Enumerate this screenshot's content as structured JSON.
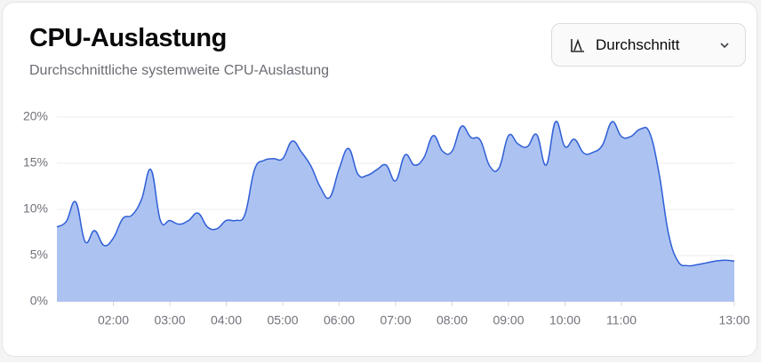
{
  "chart_data": {
    "type": "area",
    "title": "CPU-Auslastung",
    "subtitle": "Durchschnittliche systemweite CPU-Auslastung",
    "x": [
      60,
      70,
      80,
      90,
      100,
      110,
      120,
      130,
      140,
      150,
      160,
      170,
      180,
      190,
      200,
      210,
      220,
      230,
      240,
      250,
      260,
      270,
      280,
      290,
      300,
      310,
      320,
      330,
      340,
      350,
      360,
      370,
      380,
      390,
      400,
      410,
      420,
      430,
      440,
      450,
      460,
      470,
      480,
      490,
      500,
      510,
      520,
      530,
      540,
      550,
      560,
      570,
      580,
      590,
      600,
      610,
      620,
      630,
      640,
      650,
      660,
      670,
      680,
      690,
      700,
      710,
      720,
      730,
      740,
      750,
      760,
      770,
      780
    ],
    "values": [
      8.1,
      8.7,
      10.8,
      6.5,
      7.7,
      6.1,
      6.9,
      9.0,
      9.4,
      11.1,
      14.3,
      8.8,
      8.8,
      8.4,
      8.8,
      9.6,
      8.1,
      7.9,
      8.8,
      8.8,
      9.5,
      14.3,
      15.3,
      15.5,
      15.5,
      17.4,
      16.2,
      14.7,
      12.4,
      11.3,
      14.4,
      16.6,
      13.8,
      13.7,
      14.3,
      14.8,
      13.1,
      15.9,
      14.8,
      15.6,
      18.0,
      16.3,
      16.3,
      19.0,
      17.8,
      17.5,
      14.7,
      14.5,
      18.0,
      17.1,
      16.8,
      18.1,
      14.8,
      19.5,
      16.8,
      17.6,
      16.1,
      16.2,
      17.0,
      19.5,
      17.9,
      17.9,
      18.7,
      18.3,
      13.9,
      7.4,
      4.4,
      3.9,
      4.0,
      4.2,
      4.4,
      4.5,
      4.4
    ],
    "color": "#2f5fd6",
    "fill_color": "#a8bff0",
    "xlim": [
      60,
      780
    ],
    "xticks": [
      {
        "value": 120,
        "label": "02:00"
      },
      {
        "value": 180,
        "label": "03:00"
      },
      {
        "value": 240,
        "label": "04:00"
      },
      {
        "value": 300,
        "label": "05:00"
      },
      {
        "value": 360,
        "label": "06:00"
      },
      {
        "value": 420,
        "label": "07:00"
      },
      {
        "value": 480,
        "label": "08:00"
      },
      {
        "value": 540,
        "label": "09:00"
      },
      {
        "value": 600,
        "label": "10:00"
      },
      {
        "value": 660,
        "label": "11:00"
      },
      {
        "value": 780,
        "label": "13:00"
      }
    ],
    "ylim": [
      0,
      20
    ],
    "yticks": [
      {
        "value": 0,
        "label": "0%"
      },
      {
        "value": 5,
        "label": "5%"
      },
      {
        "value": 10,
        "label": "10%"
      },
      {
        "value": 15,
        "label": "15%"
      },
      {
        "value": 20,
        "label": "20%"
      }
    ],
    "grid": true
  },
  "selector": {
    "label": "Durchschnitt"
  }
}
